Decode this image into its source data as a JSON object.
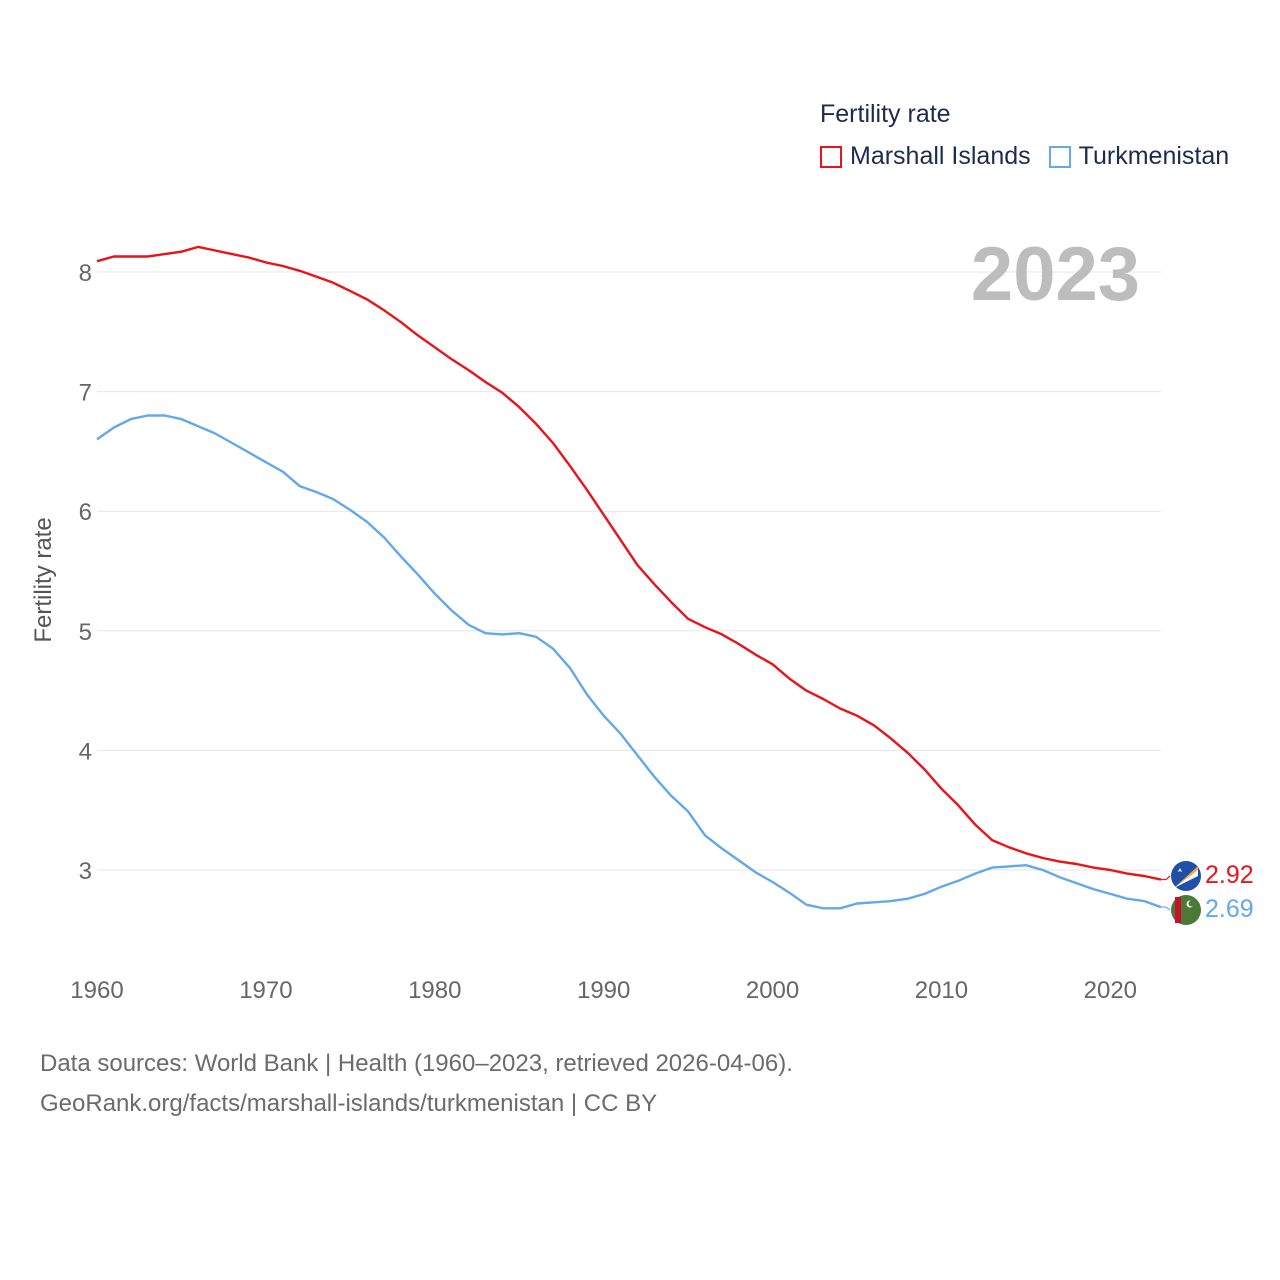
{
  "legend": {
    "title": "Fertility rate",
    "items": [
      {
        "label": "Marshall Islands",
        "color": "#e8141a"
      },
      {
        "label": "Turkmenistan",
        "color": "#63a8e8"
      }
    ]
  },
  "source": {
    "line1": "Data sources: World Bank | Health (1960–2023, retrieved 2026-04-06).",
    "line2": "GeoRank.org/facts/marshall-islands/turkmenistan | CC BY"
  },
  "chart_data": {
    "type": "line",
    "title": "Fertility rate",
    "year_label": "2023",
    "xlabel": "",
    "ylabel": "Fertility rate",
    "xlim": [
      1960,
      2023
    ],
    "ylim": [
      2.2,
      8.5
    ],
    "x_ticks": [
      1960,
      1970,
      1980,
      1990,
      2000,
      2010,
      2020
    ],
    "y_ticks": [
      3,
      4,
      5,
      6,
      7,
      8
    ],
    "grid": true,
    "x": [
      1960,
      1961,
      1962,
      1963,
      1964,
      1965,
      1966,
      1967,
      1968,
      1969,
      1970,
      1971,
      1972,
      1973,
      1974,
      1975,
      1976,
      1977,
      1978,
      1979,
      1980,
      1981,
      1982,
      1983,
      1984,
      1985,
      1986,
      1987,
      1988,
      1989,
      1990,
      1991,
      1992,
      1993,
      1994,
      1995,
      1996,
      1997,
      1998,
      1999,
      2000,
      2001,
      2002,
      2003,
      2004,
      2005,
      2006,
      2007,
      2008,
      2009,
      2010,
      2011,
      2012,
      2013,
      2014,
      2015,
      2016,
      2017,
      2018,
      2019,
      2020,
      2021,
      2022,
      2023
    ],
    "series": [
      {
        "name": "Marshall Islands",
        "color": "#e8141a",
        "end_label": "2.92",
        "values": [
          8.09,
          8.13,
          8.13,
          8.13,
          8.15,
          8.17,
          8.21,
          8.18,
          8.15,
          8.12,
          8.08,
          8.05,
          8.01,
          7.96,
          7.91,
          7.84,
          7.77,
          7.68,
          7.58,
          7.47,
          7.37,
          7.27,
          7.18,
          7.08,
          6.99,
          6.87,
          6.73,
          6.57,
          6.38,
          6.18,
          5.97,
          5.76,
          5.55,
          5.39,
          5.24,
          5.1,
          5.03,
          4.97,
          4.89,
          4.8,
          4.72,
          4.6,
          4.5,
          4.43,
          4.35,
          4.29,
          4.21,
          4.1,
          3.98,
          3.84,
          3.68,
          3.54,
          3.38,
          3.25,
          3.19,
          3.14,
          3.1,
          3.07,
          3.05,
          3.02,
          3.0,
          2.97,
          2.95,
          2.92
        ]
      },
      {
        "name": "Turkmenistan",
        "color": "#63a8e8",
        "end_label": "2.69",
        "values": [
          6.6,
          6.7,
          6.77,
          6.8,
          6.8,
          6.77,
          6.71,
          6.65,
          6.57,
          6.49,
          6.41,
          6.33,
          6.21,
          6.16,
          6.1,
          6.01,
          5.91,
          5.78,
          5.62,
          5.47,
          5.31,
          5.17,
          5.05,
          4.98,
          4.97,
          4.98,
          4.95,
          4.85,
          4.69,
          4.47,
          4.29,
          4.14,
          3.96,
          3.78,
          3.62,
          3.49,
          3.29,
          3.18,
          3.08,
          2.98,
          2.9,
          2.81,
          2.71,
          2.68,
          2.68,
          2.72,
          2.73,
          2.74,
          2.76,
          2.8,
          2.86,
          2.91,
          2.97,
          3.02,
          3.03,
          3.04,
          3.0,
          2.94,
          2.89,
          2.84,
          2.8,
          2.76,
          2.74,
          2.69
        ]
      }
    ]
  }
}
